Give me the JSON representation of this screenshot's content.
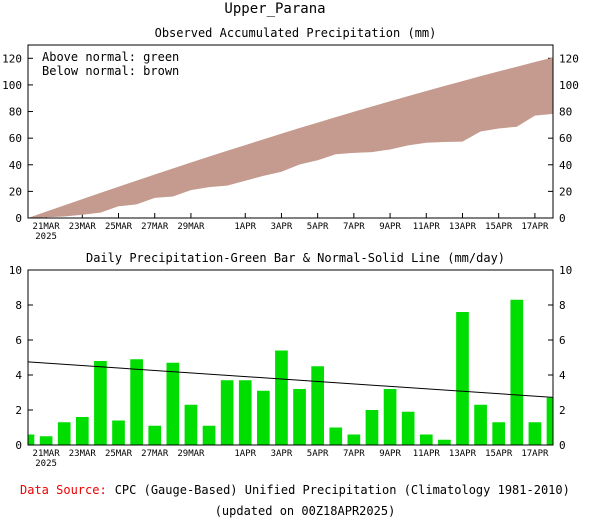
{
  "header": {
    "title": "Upper_Parana"
  },
  "chart_data": [
    {
      "type": "area",
      "title": "Observed Accumulated Precipitation (mm)",
      "legend": {
        "line1": "Above normal: green",
        "line2": "Below normal: brown",
        "placement": "top-left"
      },
      "colors": {
        "below_normal": "#c49b8e",
        "above_normal": "#00dd00"
      },
      "ylim": [
        0,
        130
      ],
      "yticks": [
        "0",
        "20",
        "40",
        "60",
        "80",
        "100",
        "120"
      ],
      "x": [
        "2025-03-20",
        "2025-03-21",
        "2025-03-22",
        "2025-03-23",
        "2025-03-24",
        "2025-03-25",
        "2025-03-26",
        "2025-03-27",
        "2025-03-28",
        "2025-03-29",
        "2025-03-30",
        "2025-03-31",
        "2025-04-01",
        "2025-04-02",
        "2025-04-03",
        "2025-04-04",
        "2025-04-05",
        "2025-04-06",
        "2025-04-07",
        "2025-04-08",
        "2025-04-09",
        "2025-04-10",
        "2025-04-11",
        "2025-04-12",
        "2025-04-13",
        "2025-04-14",
        "2025-04-15",
        "2025-04-16",
        "2025-04-17",
        "2025-04-18"
      ],
      "series": [
        {
          "role": "observed",
          "values": [
            0,
            0.6,
            1.1,
            2.4,
            4.0,
            8.8,
            10.2,
            15.1,
            16.2,
            20.9,
            23.2,
            24.3,
            28.0,
            31.7,
            34.8,
            40.2,
            43.4,
            47.9,
            48.9,
            49.5,
            51.5,
            54.6,
            56.5,
            57.1,
            57.4,
            65.0,
            67.3,
            68.6,
            76.9,
            78.2
          ],
          "color": "#c49b8e"
        },
        {
          "role": "normal",
          "values": [
            0,
            4.8,
            9.5,
            14.2,
            18.9,
            23.5,
            28.1,
            32.7,
            37.2,
            41.7,
            46.1,
            50.5,
            54.8,
            59.1,
            63.4,
            67.6,
            71.7,
            75.8,
            79.8,
            83.8,
            87.7,
            91.6,
            95.4,
            99.2,
            102.9,
            106.6,
            110.2,
            113.7,
            117.2,
            120.6
          ]
        }
      ]
    },
    {
      "type": "bar",
      "title": "Daily Precipitation-Green Bar & Normal-Solid Line (mm/day)",
      "colors": {
        "bar": "#00dd00",
        "normal_line": "#000000"
      },
      "ylim": [
        0,
        10
      ],
      "yticks": [
        "0",
        "2",
        "4",
        "6",
        "8",
        "10"
      ],
      "x": [
        "2025-03-20",
        "2025-03-21",
        "2025-03-22",
        "2025-03-23",
        "2025-03-24",
        "2025-03-25",
        "2025-03-26",
        "2025-03-27",
        "2025-03-28",
        "2025-03-29",
        "2025-03-30",
        "2025-03-31",
        "2025-04-01",
        "2025-04-02",
        "2025-04-03",
        "2025-04-04",
        "2025-04-05",
        "2025-04-06",
        "2025-04-07",
        "2025-04-08",
        "2025-04-09",
        "2025-04-10",
        "2025-04-11",
        "2025-04-12",
        "2025-04-13",
        "2025-04-14",
        "2025-04-15",
        "2025-04-16",
        "2025-04-17",
        "2025-04-18"
      ],
      "values": [
        0.6,
        0.5,
        1.3,
        1.6,
        4.8,
        1.4,
        4.9,
        1.1,
        4.7,
        2.3,
        1.1,
        3.7,
        3.7,
        3.1,
        5.4,
        3.2,
        4.5,
        1.0,
        0.6,
        2.0,
        3.2,
        1.9,
        0.6,
        0.3,
        7.6,
        2.3,
        1.3,
        8.3,
        1.3,
        2.7
      ],
      "normal": {
        "start": 4.75,
        "end": 2.72
      }
    }
  ],
  "x_axis": {
    "labels": [
      "21MAR",
      "23MAR",
      "25MAR",
      "27MAR",
      "29MAR",
      "1APR",
      "3APR",
      "5APR",
      "7APR",
      "9APR",
      "11APR",
      "13APR",
      "15APR",
      "17APR"
    ],
    "year_label": "2025"
  },
  "footer": {
    "source_label": "Data Source:",
    "source_text": "CPC (Gauge-Based) Unified Precipitation (Climatology 1981-2010)",
    "updated": "(updated on 00Z18APR2025)",
    "source_label_color": "#ee0000"
  }
}
